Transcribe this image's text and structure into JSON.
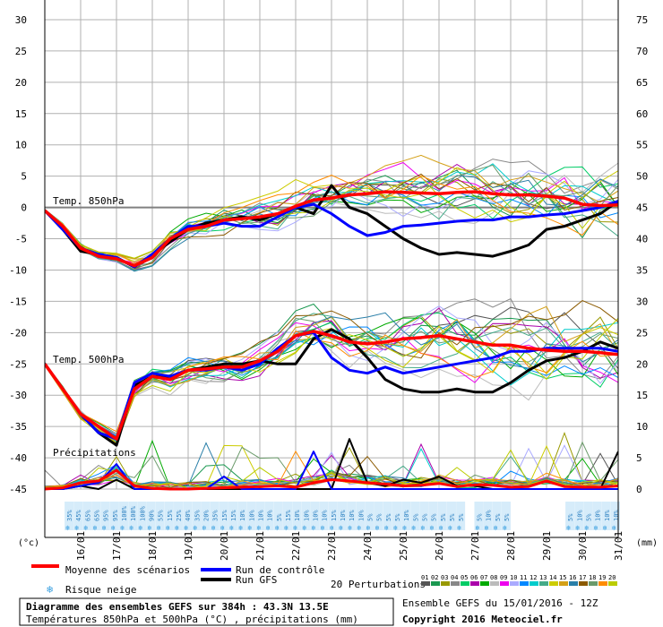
{
  "chart_data": {
    "type": "line",
    "left_axis": {
      "label": "(°c)",
      "ticks": [
        30,
        25,
        20,
        15,
        10,
        5,
        0,
        -5,
        -10,
        -15,
        -20,
        -25,
        -30,
        -35,
        -40,
        -45
      ],
      "range": [
        -45,
        30
      ]
    },
    "right_axis": {
      "label": "(mm)",
      "ticks": [
        75,
        70,
        65,
        60,
        55,
        50,
        45,
        40,
        35,
        30,
        25,
        20,
        15,
        10,
        5,
        0
      ],
      "range": [
        0,
        75
      ]
    },
    "x_ticks": [
      "16/01",
      "17/01",
      "18/01",
      "19/01",
      "20/01",
      "21/01",
      "22/01",
      "23/01",
      "24/01",
      "25/01",
      "26/01",
      "27/01",
      "28/01",
      "29/01",
      "30/01",
      "31/01"
    ],
    "x_range_hours": [
      0,
      384
    ],
    "panel_labels": {
      "t850": "Temp. 850hPa",
      "t500": "Temp. 500hPa",
      "precip": "Précipitations"
    },
    "x_hours": [
      0,
      12,
      24,
      36,
      48,
      60,
      72,
      84,
      96,
      108,
      120,
      132,
      144,
      156,
      168,
      180,
      192,
      204,
      216,
      228,
      240,
      252,
      264,
      276,
      288,
      300,
      312,
      324,
      336,
      348,
      360,
      372,
      384
    ],
    "series": [
      {
        "name": "Moyenne des scénarios",
        "color": "#ff0000",
        "t850": [
          -0.5,
          -3,
          -6.5,
          -7.8,
          -8.2,
          -9.3,
          -8,
          -5,
          -3.5,
          -3,
          -2,
          -1.8,
          -1.5,
          -1,
          0.2,
          1.2,
          1.5,
          2,
          2.2,
          2.5,
          2.4,
          2.3,
          2.2,
          2.4,
          2.5,
          2.2,
          2,
          2,
          1.8,
          1.5,
          0.5,
          0.3,
          0.4
        ],
        "t500": [
          -25,
          -29,
          -33,
          -35,
          -37,
          -29,
          -27,
          -27.5,
          -26,
          -25.8,
          -25.5,
          -25.5,
          -24.5,
          -23,
          -20.5,
          -19.8,
          -20.5,
          -21.5,
          -21.8,
          -21.5,
          -21,
          -20.8,
          -20.5,
          -21,
          -21.5,
          -22,
          -22,
          -22.5,
          -22.8,
          -23,
          -23,
          -23.2,
          -23.5
        ],
        "precip": [
          0,
          0.2,
          1,
          1.3,
          3,
          0.5,
          0.1,
          0,
          0,
          0.1,
          0.2,
          0.3,
          0.4,
          0.5,
          0.3,
          1,
          1.5,
          1.3,
          1,
          0.8,
          0.5,
          0.6,
          0.9,
          0.4,
          0.7,
          0.6,
          0.3,
          0.4,
          1.3,
          0.4,
          0.3,
          0.3,
          0.5
        ]
      },
      {
        "name": "Run de contrôle",
        "color": "#0000ff",
        "t850": [
          -0.5,
          -3.5,
          -6.5,
          -7.5,
          -8,
          -9.5,
          -7.5,
          -5,
          -3,
          -3,
          -2.5,
          -3,
          -3,
          -1.5,
          0,
          0.5,
          -1,
          -3,
          -4.5,
          -4,
          -3,
          -2.8,
          -2.5,
          -2.2,
          -2,
          -2,
          -1.5,
          -1.5,
          -1.2,
          -1,
          -0.5,
          0,
          1
        ],
        "t500": [
          -25,
          -29,
          -33,
          -36,
          -37,
          -28,
          -26.5,
          -27,
          -26,
          -26,
          -25.5,
          -26,
          -25,
          -22.5,
          -20.5,
          -20,
          -24,
          -26,
          -26.5,
          -25.5,
          -26.5,
          -26,
          -25.5,
          -25,
          -24.5,
          -24,
          -23,
          -23,
          -22.5,
          -22.5,
          -22.5,
          -22.5,
          -23
        ],
        "precip": [
          0,
          0,
          0.5,
          1,
          4,
          0,
          0,
          0,
          0,
          0,
          2,
          0,
          0,
          0,
          0,
          6,
          0,
          0,
          0,
          0,
          0,
          0,
          0,
          0,
          0,
          0,
          0,
          0,
          0,
          0,
          0,
          0,
          0
        ]
      },
      {
        "name": "Run GFS",
        "color": "#000000",
        "t850": [
          -0.5,
          -3.5,
          -7,
          -7.5,
          -8,
          -9.5,
          -7.5,
          -5.5,
          -3.5,
          -2.5,
          -2,
          -1.5,
          -2,
          -1,
          0,
          -1,
          3.5,
          0,
          -1,
          -3,
          -5,
          -6.5,
          -7.5,
          -7.2,
          -7.5,
          -7.8,
          -7,
          -6,
          -3.5,
          -3,
          -2,
          -1,
          1
        ],
        "t500": [
          -25,
          -29,
          -33,
          -36,
          -38,
          -28.5,
          -27,
          -27,
          -26,
          -25.5,
          -25,
          -25,
          -24.5,
          -25,
          -25,
          -21,
          -19.5,
          -21,
          -24,
          -27.5,
          -29,
          -29.5,
          -29.5,
          -29,
          -29.5,
          -29.5,
          -28,
          -26,
          -24.5,
          -24,
          -23,
          -21.5,
          -22.5
        ],
        "precip": [
          0,
          0,
          0.5,
          0,
          1.5,
          0,
          0,
          0,
          0,
          0,
          0,
          0,
          0,
          0,
          0,
          0,
          0,
          8,
          1,
          0.5,
          1.5,
          1,
          2,
          0.5,
          0.5,
          0,
          0,
          0,
          0,
          0,
          0,
          0,
          6
        ]
      }
    ],
    "perturbations": {
      "label": "20 Perturbations",
      "ids": [
        "01",
        "02",
        "03",
        "04",
        "05",
        "06",
        "07",
        "08",
        "09",
        "10",
        "11",
        "12",
        "13",
        "14",
        "15",
        "16",
        "17",
        "18",
        "19",
        "20"
      ],
      "colors": [
        "#555555",
        "#1a9850",
        "#999900",
        "#888888",
        "#00cc66",
        "#aa00aa",
        "#00aa00",
        "#bbbbbb",
        "#ee00ee",
        "#aaaaff",
        "#0088ff",
        "#00cccc",
        "#44aa88",
        "#cccc00",
        "#d4a017",
        "#2a7fa8",
        "#8b5a00",
        "#6a9a6a",
        "#ff8c00",
        "#bbcc00"
      ]
    },
    "snow_risk_labels": [
      "35%",
      "45%",
      "65%",
      "65%",
      "95%",
      "95%",
      "100%",
      "100%",
      "100%",
      "90%",
      "55%",
      "15%",
      "25%",
      "40%",
      "35%",
      "20%",
      "35%",
      "15%",
      "15%",
      "10%",
      "10%",
      "10%",
      "10%",
      "5%",
      "15%",
      "10%",
      "10%",
      "10%",
      "10%",
      "15%",
      "10%",
      "10%",
      "10%",
      "5%",
      "5%",
      "5%",
      "5%",
      "10%",
      "5%",
      "5%",
      "5%",
      "5%",
      "5%",
      "5%",
      "",
      "5%",
      "10%",
      "5%",
      "5%",
      "",
      "",
      "",
      "",
      "",
      "",
      "5%",
      "10%",
      "5%",
      "10%",
      "10%",
      "10%"
    ],
    "legend": {
      "mean": "Moyenne des scénarios",
      "control": "Run de contrôle",
      "gfs": "Run GFS",
      "snow": "Risque neige"
    }
  },
  "footer": {
    "title": "Diagramme des ensembles GEFS sur 384h : 43.3N 13.5E",
    "subtitle": "Températures 850hPa et 500hPa (°C) , précipitations (mm)",
    "run_info": "Ensemble GEFS du 15/01/2016 - 12Z",
    "copyright": "Copyright 2016 Meteociel.fr"
  }
}
